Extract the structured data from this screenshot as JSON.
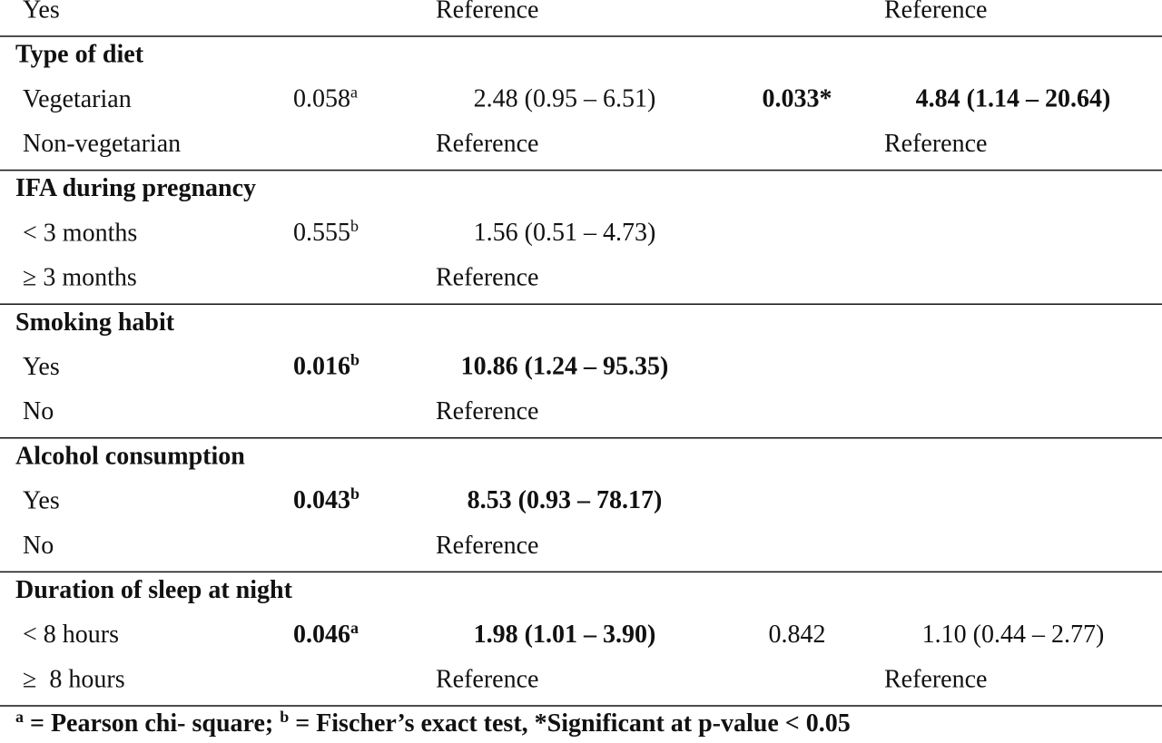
{
  "table": {
    "rows": [
      {
        "label": "Yes",
        "ref1": "Reference",
        "ref2": "Reference",
        "rule": true
      },
      {
        "header": "Type of diet"
      },
      {
        "label": "Vegetarian",
        "p1": {
          "text": "0.058",
          "sup": "a"
        },
        "or1": {
          "text": "2.48 (0.95 – 6.51)"
        },
        "p2": {
          "text": "0.033*",
          "bold": true
        },
        "or2": {
          "text": "4.84 (1.14 – 20.64)",
          "bold": true
        }
      },
      {
        "label": "Non-vegetarian",
        "ref1": "Reference",
        "ref2": "Reference",
        "rule": true
      },
      {
        "header": "IFA during pregnancy"
      },
      {
        "label": "< 3 months",
        "p1": {
          "text": "0.555",
          "sup": "b"
        },
        "or1": {
          "text": "1.56 (0.51 – 4.73)"
        }
      },
      {
        "label": "≥ 3 months",
        "ref1": "Reference",
        "rule": true
      },
      {
        "header": "Smoking habit"
      },
      {
        "label": "Yes",
        "p1": {
          "text": "0.016",
          "sup": "b",
          "bold": true
        },
        "or1": {
          "text": "10.86 (1.24 – 95.35)",
          "bold": true
        }
      },
      {
        "label": "No",
        "ref1": "Reference",
        "rule": true
      },
      {
        "header": "Alcohol consumption"
      },
      {
        "label": "Yes",
        "p1": {
          "text": "0.043",
          "sup": "b",
          "bold": true
        },
        "or1": {
          "text": "8.53 (0.93 – 78.17)",
          "bold": true
        }
      },
      {
        "label": "No",
        "ref1": "Reference",
        "rule": true
      },
      {
        "header": "Duration of sleep at night"
      },
      {
        "label": "< 8 hours",
        "p1": {
          "text": "0.046",
          "sup": "a",
          "bold": true
        },
        "or1": {
          "text": "1.98 (1.01 – 3.90)",
          "bold": true
        },
        "p2": {
          "text": "0.842"
        },
        "or2": {
          "text": "1.10 (0.44 – 2.77)"
        }
      },
      {
        "label": "≥  8 hours",
        "ref1": "Reference",
        "ref2": "Reference",
        "rule": true
      }
    ],
    "footnote": [
      {
        "sup": "a",
        "text": " = Pearson chi- square; "
      },
      {
        "sup": "b",
        "text": " = Fischer’s exact test, *Significant at p-value < 0.05"
      }
    ]
  }
}
